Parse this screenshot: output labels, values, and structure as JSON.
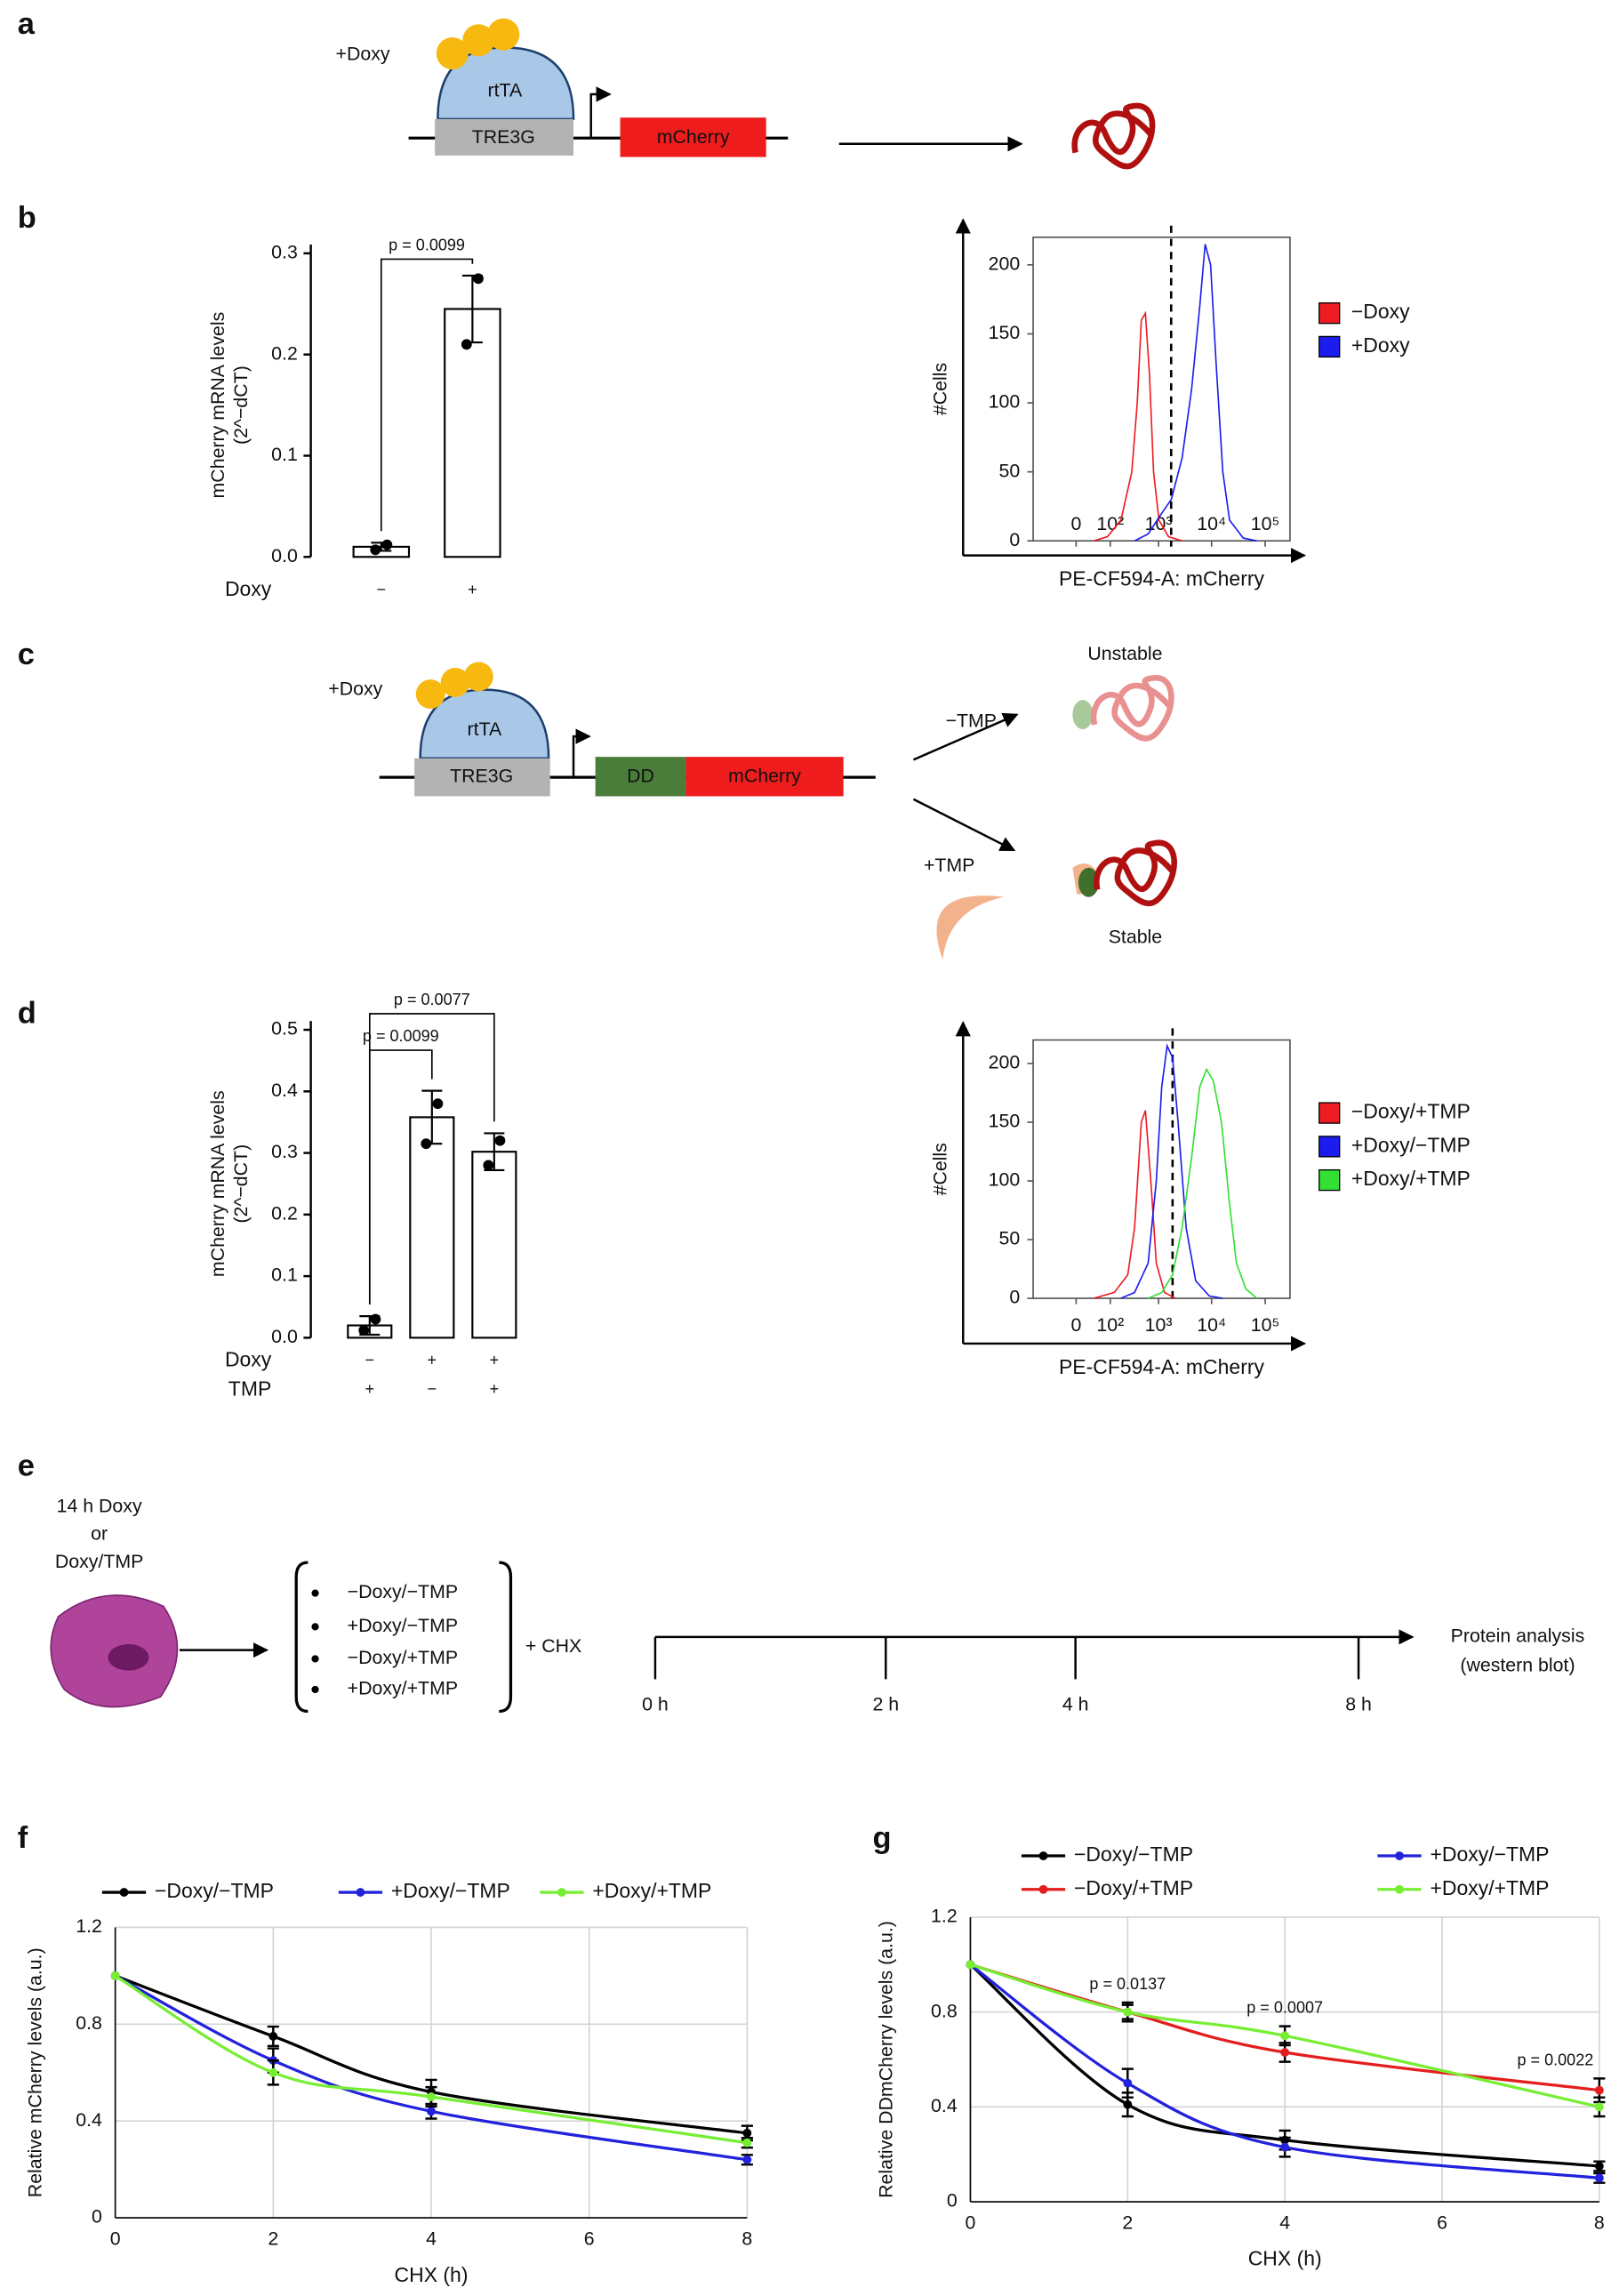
{
  "panel_labels": [
    "a",
    "b",
    "c",
    "d",
    "e",
    "f",
    "g"
  ],
  "diagram_a": {
    "inducer": "+Doxy",
    "activator": "rtTA",
    "promoter": "TRE3G",
    "gene": "mCherry"
  },
  "diagram_c": {
    "inducer": "+Doxy",
    "activator": "rtTA",
    "promoter": "TRE3G",
    "degron": "DD",
    "gene": "mCherry",
    "without_ligand": "−TMP",
    "with_ligand": "+TMP",
    "unstable": "Unstable",
    "stable": "Stable"
  },
  "diagram_e": {
    "treatment": [
      "14 h Doxy",
      "or",
      "Doxy/TMP"
    ],
    "conditions": [
      "−Doxy/−TMP",
      "+Doxy/−TMP",
      "−Doxy/+TMP",
      "+Doxy/+TMP"
    ],
    "drug": "+ CHX",
    "timeline": [
      "0 h",
      "2 h",
      "4 h",
      "8 h"
    ],
    "readout": [
      "Protein analysis",
      "(western blot)"
    ]
  },
  "chart_data": [
    {
      "type": "bar",
      "y_label": [
        "mCherry mRNA levels",
        "(2^−dCT)"
      ],
      "condition_rows": [
        {
          "name": "Doxy",
          "values": [
            "−",
            "+"
          ]
        }
      ],
      "values": [
        0.01,
        0.245
      ],
      "errors": [
        0.004,
        0.033
      ],
      "points": [
        [
          0.007,
          0.012
        ],
        [
          0.21,
          0.275
        ]
      ],
      "color": "#ffffff",
      "ylim": [
        0,
        0.3
      ],
      "yticks": [
        {
          "value": 0,
          "label": "0.0"
        },
        0.1,
        0.2,
        0.3
      ],
      "comparisons": [
        {
          "between": [
            0,
            1
          ],
          "label": "p = 0.0099"
        }
      ]
    },
    {
      "type": "line",
      "xscale": "biexponential",
      "y_label": "#Cells",
      "x_label": "PE-CF594-A: mCherry",
      "xlim": [
        -160,
        290000
      ],
      "xticks": [
        0,
        {
          "value": 100,
          "label": "10²"
        },
        {
          "value": 1000,
          "label": "10³"
        },
        {
          "value": 10000,
          "label": "10⁴"
        },
        {
          "value": 100000,
          "label": "10⁵"
        }
      ],
      "ylim": [
        0,
        220
      ],
      "yticks": [
        0,
        50,
        100,
        150,
        200
      ],
      "threshold": 1740,
      "legend": "right",
      "series": [
        {
          "name": "−Doxy",
          "color": "#ee1c24",
          "x": [
            34,
            85,
            175,
            297,
            383,
            462,
            556,
            669,
            802,
            1020,
            1550,
            2800
          ],
          "values": [
            0,
            3,
            15,
            50,
            100,
            160,
            165,
            120,
            50,
            15,
            3,
            0
          ]
        },
        {
          "name": "+Doxy",
          "color": "#1c1cee",
          "x": [
            338,
            629,
            1150,
            1750,
            2800,
            4230,
            6010,
            7590,
            9590,
            12100,
            16200,
            21700,
            39000,
            69800
          ],
          "values": [
            0,
            5,
            20,
            30,
            60,
            110,
            170,
            215,
            200,
            130,
            50,
            15,
            2,
            0
          ]
        }
      ]
    },
    {
      "type": "bar",
      "y_label": [
        "mCherry mRNA levels",
        "(2^−dCT)"
      ],
      "condition_rows": [
        {
          "name": "Doxy",
          "values": [
            "−",
            "+",
            "+"
          ]
        },
        {
          "name": "TMP",
          "values": [
            "+",
            "−",
            "+"
          ]
        }
      ],
      "values": [
        0.02,
        0.358,
        0.302
      ],
      "errors": [
        0.015,
        0.043,
        0.03
      ],
      "points": [
        [
          0.012,
          0.03
        ],
        [
          0.315,
          0.38
        ],
        [
          0.28,
          0.32
        ]
      ],
      "color": "#ffffff",
      "ylim": [
        0,
        0.5
      ],
      "yticks": [
        {
          "value": 0,
          "label": "0.0"
        },
        0.1,
        0.2,
        0.3,
        0.4,
        0.5
      ],
      "comparisons": [
        {
          "between": [
            0,
            1
          ],
          "label": "p = 0.0099"
        },
        {
          "between": [
            0,
            2
          ],
          "label": "p = 0.0077"
        }
      ]
    },
    {
      "type": "line",
      "xscale": "biexponential",
      "y_label": "#Cells",
      "x_label": "PE-CF594-A: mCherry",
      "xlim": [
        -160,
        290000
      ],
      "xticks": [
        0,
        {
          "value": 100,
          "label": "10²"
        },
        {
          "value": 1000,
          "label": "10³"
        },
        {
          "value": 10000,
          "label": "10⁴"
        },
        {
          "value": 100000,
          "label": "10⁵"
        }
      ],
      "ylim": [
        0,
        220
      ],
      "yticks": [
        0,
        50,
        100,
        150,
        200
      ],
      "threshold": 1850,
      "legend": "right",
      "series": [
        {
          "name": "−Doxy/+TMP",
          "color": "#ee1c24",
          "x": [
            34,
            124,
            245,
            338,
            462,
            556,
            710,
            906,
            1300,
            2090
          ],
          "values": [
            0,
            5,
            20,
            60,
            150,
            160,
            100,
            30,
            5,
            0
          ]
        },
        {
          "name": "+Doxy/−TMP",
          "color": "#1c1cee",
          "x": [
            175,
            338,
            629,
            906,
            1150,
            1460,
            1850,
            2350,
            3340,
            5040,
            9050,
            16200
          ],
          "values": [
            0,
            5,
            30,
            100,
            180,
            215,
            205,
            150,
            60,
            15,
            2,
            0
          ]
        },
        {
          "name": "+Doxy/+TMP",
          "color": "#33e033",
          "x": [
            629,
            1150,
            1850,
            2800,
            4230,
            6010,
            8040,
            10800,
            15300,
            21700,
            29100,
            43800,
            69800
          ],
          "values": [
            0,
            5,
            20,
            60,
            120,
            180,
            195,
            185,
            150,
            80,
            30,
            8,
            0
          ]
        }
      ]
    },
    {
      "type": "line",
      "x_label": "CHX (h)",
      "y_label": "Relative mCherry levels (a.u.)",
      "x": [
        0,
        2,
        4,
        8
      ],
      "xlim": [
        0,
        8
      ],
      "xticks": [
        0,
        2,
        4,
        6,
        8
      ],
      "ylim": [
        0,
        1.2
      ],
      "yticks": [
        0,
        0.4,
        0.8,
        1.2
      ],
      "grid": true,
      "legend": "top",
      "series": [
        {
          "name": "−Doxy/−TMP",
          "color": "#000000",
          "values": [
            1,
            0.75,
            0.52,
            0.35
          ],
          "errors": [
            0,
            0.04,
            0.05,
            0.03
          ]
        },
        {
          "name": "+Doxy/−TMP",
          "color": "#2222dd",
          "values": [
            1,
            0.65,
            0.44,
            0.24
          ],
          "errors": [
            0,
            0.05,
            0.03,
            0.02
          ]
        },
        {
          "name": "+Doxy/+TMP",
          "color": "#77ee33",
          "values": [
            1,
            0.6,
            0.5,
            0.31
          ],
          "errors": [
            0,
            0.05,
            0.04,
            0.02
          ]
        }
      ]
    },
    {
      "type": "line",
      "x_label": "CHX (h)",
      "y_label": "Relative DDmCherry levels (a.u.)",
      "x": [
        0,
        2,
        4,
        8
      ],
      "xlim": [
        0,
        8
      ],
      "xticks": [
        0,
        2,
        4,
        6,
        8
      ],
      "ylim": [
        0,
        1.2
      ],
      "yticks": [
        0,
        0.4,
        0.8,
        1.2
      ],
      "grid": true,
      "legend": "top",
      "series": [
        {
          "name": "−Doxy/−TMP",
          "color": "#000000",
          "values": [
            1,
            0.41,
            0.26,
            0.15
          ],
          "errors": [
            0,
            0.05,
            0.04,
            0.02
          ]
        },
        {
          "name": "−Doxy/+TMP",
          "color": "#e31e1e",
          "values": [
            1,
            0.8,
            0.63,
            0.47
          ],
          "errors": [
            0,
            0.04,
            0.04,
            0.05
          ]
        },
        {
          "name": "+Doxy/−TMP",
          "color": "#2222dd",
          "values": [
            1,
            0.5,
            0.23,
            0.1
          ],
          "errors": [
            0,
            0.06,
            0.04,
            0.02
          ]
        },
        {
          "name": "+Doxy/+TMP",
          "color": "#77ee33",
          "values": [
            1,
            0.8,
            0.7,
            0.4
          ],
          "errors": [
            0,
            0.03,
            0.04,
            0.04
          ]
        }
      ],
      "annotations": [
        {
          "x": 2,
          "label": "p = 0.0137"
        },
        {
          "x": 4,
          "label": "p = 0.0007"
        },
        {
          "x": 8,
          "label": "p = 0.0022"
        }
      ]
    }
  ]
}
